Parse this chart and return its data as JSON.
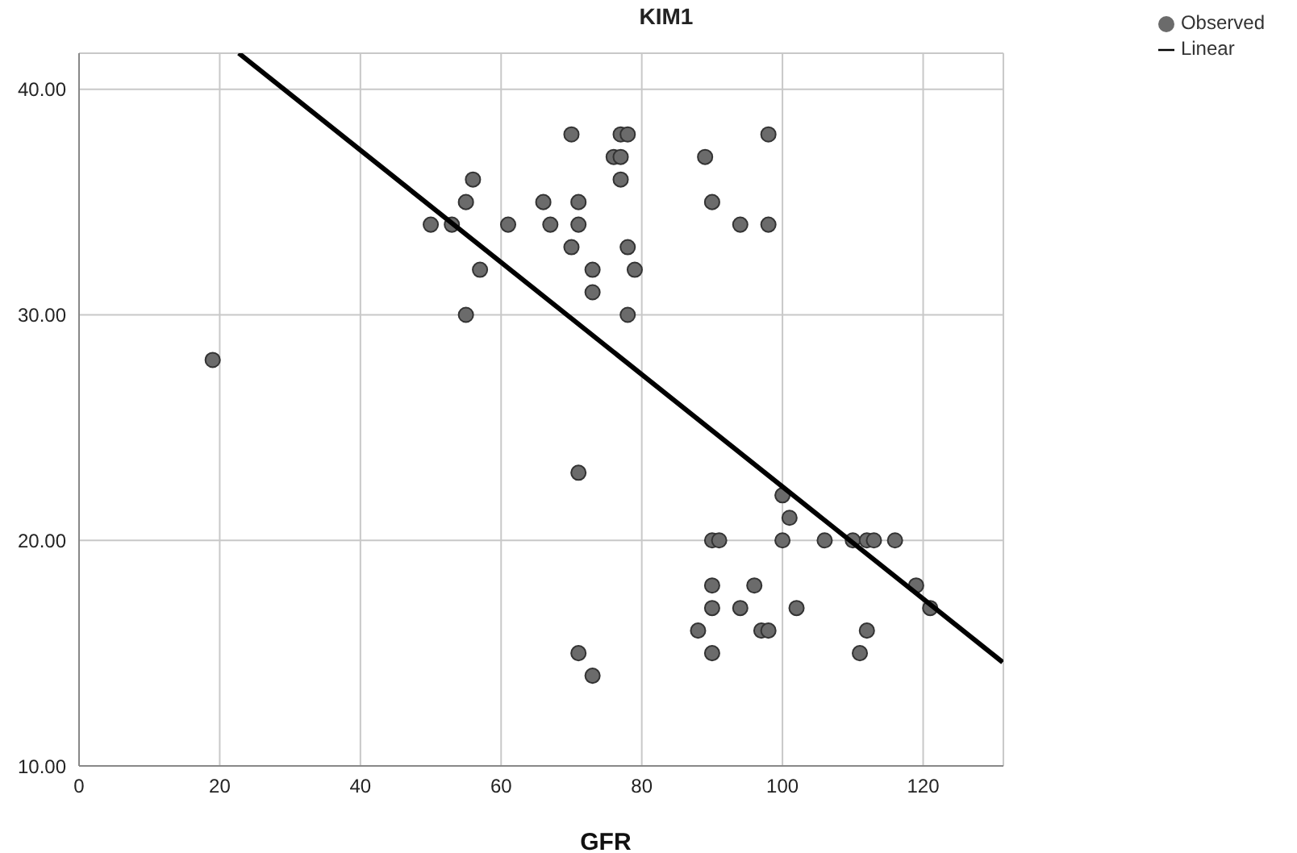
{
  "chart_data": {
    "type": "scatter",
    "title": "KIM1",
    "xlabel": "GFR",
    "xlim": [
      0,
      131.4
    ],
    "xticks": [
      0,
      20,
      40,
      60,
      80,
      100,
      120
    ],
    "ylim": [
      10,
      41.6
    ],
    "yticks": [
      {
        "value": 10,
        "label": "10.00"
      },
      {
        "value": 20,
        "label": "20.00"
      },
      {
        "value": 30,
        "label": "30.00"
      },
      {
        "value": 40,
        "label": "40.00"
      }
    ],
    "grid": true,
    "legend": "top right",
    "series": [
      {
        "name": "Observed",
        "marker": "circle",
        "color": "#6b6b6b",
        "x": [
          19,
          50,
          53,
          55,
          55,
          56,
          57,
          61,
          66,
          67,
          70,
          70,
          71,
          71,
          71,
          71,
          73,
          73,
          73,
          76,
          77,
          77,
          78,
          77,
          78,
          78,
          79,
          89,
          90,
          94,
          98,
          98,
          88,
          90,
          91,
          90,
          90,
          90,
          94,
          96,
          97,
          98,
          100,
          101,
          100,
          102,
          106,
          110,
          112,
          113,
          116,
          119,
          121,
          111,
          112
        ],
        "values": [
          28,
          34,
          34,
          35,
          30,
          36,
          32,
          34,
          35,
          34,
          38,
          33,
          35,
          34,
          23,
          15,
          32,
          31,
          14,
          37,
          37,
          38,
          38,
          36,
          33,
          30,
          32,
          37,
          35,
          34,
          38,
          34,
          16,
          20,
          20,
          18,
          17,
          15,
          17,
          18,
          16,
          16,
          22,
          21,
          20,
          17,
          20,
          20,
          20,
          20,
          20,
          18,
          17,
          15,
          16
        ]
      },
      {
        "name": "Linear",
        "type": "line",
        "color": "#000000",
        "line_style": "solid",
        "x": [
          22.7,
          131.3
        ],
        "values": [
          41.6,
          14.6
        ]
      }
    ]
  }
}
